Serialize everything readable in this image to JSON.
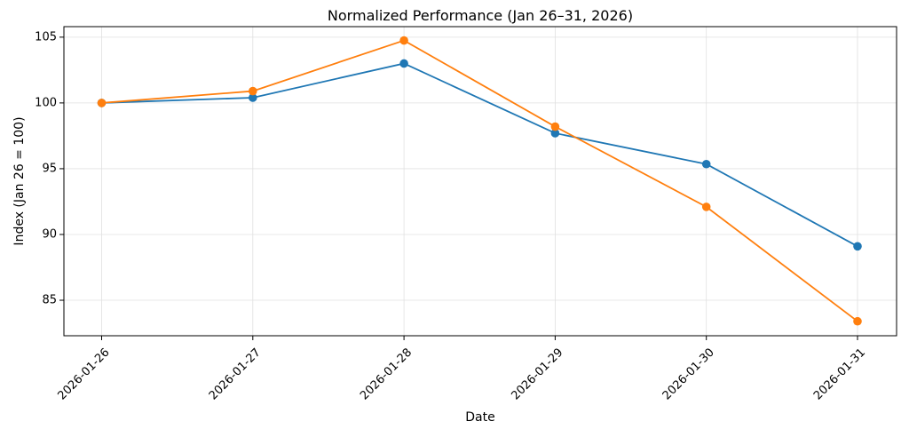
{
  "chart_data": {
    "type": "line",
    "title": "Normalized Performance (Jan 26–31, 2026)",
    "xlabel": "Date",
    "ylabel": "Index (Jan 26 = 100)",
    "x": [
      "2026-01-26",
      "2026-01-27",
      "2026-01-28",
      "2026-01-29",
      "2026-01-30",
      "2026-01-31"
    ],
    "ylim": [
      82.3,
      105.8
    ],
    "yticks": [
      85,
      90,
      95,
      100,
      105
    ],
    "grid": true,
    "legend": "none",
    "series": [
      {
        "color": "#1f77b4",
        "values": [
          100.0,
          100.4,
          103.0,
          97.7,
          95.35,
          89.1
        ]
      },
      {
        "color": "#ff7f0e",
        "values": [
          100.0,
          100.9,
          104.75,
          98.2,
          92.1,
          83.4
        ]
      }
    ]
  }
}
